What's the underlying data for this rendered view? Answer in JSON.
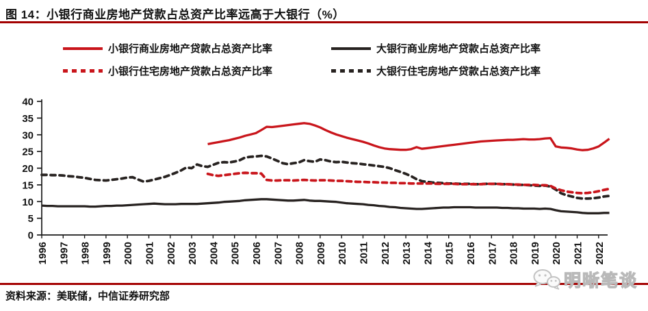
{
  "figure": {
    "title": "图 14：小银行商业房地产贷款占总资产比率远高于大银行（%）",
    "source": "资料来源：美联储，中信证券研究部",
    "watermark_text": "明晰笔谈"
  },
  "colors": {
    "accent_red": "#C9151B",
    "series_black": "#272220",
    "rule_red": "#A30000",
    "axis": "#1A1A1A",
    "watermark_gray": "#C6C6C6"
  },
  "chart_data": {
    "type": "line",
    "title": "小银行商业房地产贷款占总资产比率远高于大银行（%）",
    "xlabel": "",
    "ylabel": "",
    "unit": "%",
    "grid": false,
    "legend_position": "top",
    "ylim": [
      0,
      40
    ],
    "y_ticks": [
      0,
      5,
      10,
      15,
      20,
      25,
      30,
      35,
      40
    ],
    "x_domain": [
      1996,
      2022.5
    ],
    "x_step": 0.25,
    "x_tick_labels": [
      "1996",
      "1997",
      "1998",
      "1999",
      "2000",
      "2001",
      "2002",
      "2003",
      "2004",
      "2005",
      "2006",
      "2007",
      "2008",
      "2009",
      "2010",
      "2011",
      "2012",
      "2013",
      "2014",
      "2015",
      "2016",
      "2017",
      "2018",
      "2019",
      "2020",
      "2021",
      "2022"
    ],
    "series": [
      {
        "name": "小银行商业房地产贷款占总资产比率",
        "color": "#C9151B",
        "style": "solid",
        "x_start": 2003.75,
        "values": [
          27.2,
          27.5,
          27.8,
          28.1,
          28.4,
          28.8,
          29.2,
          29.7,
          30.1,
          30.5,
          31.4,
          32.4,
          32.3,
          32.5,
          32.7,
          32.9,
          33.1,
          33.3,
          33.5,
          33.3,
          32.8,
          32.2,
          31.4,
          30.7,
          30.1,
          29.6,
          29.1,
          28.7,
          28.3,
          27.9,
          27.4,
          26.8,
          26.3,
          25.9,
          25.7,
          25.6,
          25.5,
          25.5,
          25.7,
          26.3,
          25.8,
          26.0,
          26.2,
          26.4,
          26.6,
          26.8,
          27.0,
          27.2,
          27.4,
          27.6,
          27.8,
          28.0,
          28.1,
          28.2,
          28.3,
          28.4,
          28.5,
          28.5,
          28.6,
          28.7,
          28.6,
          28.6,
          28.7,
          28.9,
          29.0,
          26.5,
          26.2,
          26.1,
          25.9,
          25.6,
          25.4,
          25.5,
          25.9,
          26.5,
          27.6,
          28.8
        ]
      },
      {
        "name": "大银行商业房地产贷款占总资产比率",
        "color": "#272220",
        "style": "solid",
        "x_start": 1996.0,
        "values": [
          8.8,
          8.7,
          8.7,
          8.6,
          8.6,
          8.6,
          8.6,
          8.6,
          8.6,
          8.5,
          8.5,
          8.6,
          8.7,
          8.7,
          8.8,
          8.8,
          8.9,
          9.0,
          9.1,
          9.2,
          9.3,
          9.4,
          9.3,
          9.2,
          9.2,
          9.2,
          9.3,
          9.3,
          9.3,
          9.3,
          9.4,
          9.5,
          9.6,
          9.7,
          9.9,
          10.0,
          10.1,
          10.2,
          10.4,
          10.5,
          10.6,
          10.7,
          10.7,
          10.6,
          10.5,
          10.4,
          10.3,
          10.3,
          10.4,
          10.5,
          10.3,
          10.2,
          10.2,
          10.1,
          10.0,
          9.9,
          9.7,
          9.5,
          9.4,
          9.3,
          9.2,
          9.0,
          8.9,
          8.7,
          8.6,
          8.4,
          8.3,
          8.1,
          8.0,
          7.9,
          7.8,
          7.8,
          7.9,
          8.0,
          8.1,
          8.2,
          8.2,
          8.3,
          8.3,
          8.3,
          8.3,
          8.2,
          8.2,
          8.2,
          8.2,
          8.2,
          8.1,
          8.1,
          8.0,
          8.0,
          7.9,
          7.9,
          7.9,
          7.8,
          7.9,
          7.8,
          7.4,
          7.1,
          7.0,
          6.9,
          6.8,
          6.6,
          6.5,
          6.5,
          6.5,
          6.6,
          6.6
        ]
      },
      {
        "name": "小银行住宅房地产贷款占总资产比率",
        "color": "#C9151B",
        "style": "dashed",
        "x_start": 2003.75,
        "values": [
          18.3,
          17.9,
          17.7,
          17.9,
          18.1,
          18.3,
          18.5,
          18.6,
          18.5,
          18.5,
          18.4,
          16.5,
          16.3,
          16.3,
          16.4,
          16.4,
          16.3,
          16.4,
          16.5,
          16.4,
          16.3,
          16.4,
          16.4,
          16.3,
          16.2,
          16.2,
          16.1,
          16.0,
          15.9,
          15.9,
          15.8,
          15.8,
          15.7,
          15.7,
          15.6,
          15.6,
          15.5,
          15.5,
          15.4,
          15.4,
          15.4,
          15.4,
          15.4,
          15.3,
          15.3,
          15.3,
          15.3,
          15.2,
          15.2,
          15.2,
          15.2,
          15.2,
          15.3,
          15.3,
          15.3,
          15.2,
          15.2,
          15.1,
          15.1,
          15.0,
          15.0,
          15.0,
          14.9,
          14.9,
          14.7,
          13.9,
          13.4,
          13.0,
          12.8,
          12.6,
          12.5,
          12.6,
          12.8,
          13.1,
          13.5,
          13.8
        ]
      },
      {
        "name": "大银行住宅房地产贷款占总资产比率",
        "color": "#272220",
        "style": "dashed",
        "x_start": 1996.0,
        "values": [
          18.0,
          18.0,
          17.9,
          17.9,
          17.8,
          17.6,
          17.5,
          17.3,
          17.1,
          16.8,
          16.5,
          16.4,
          16.3,
          16.5,
          16.7,
          16.9,
          17.2,
          17.3,
          16.6,
          16.0,
          16.2,
          16.6,
          17.0,
          17.4,
          18.0,
          18.6,
          19.3,
          20.2,
          20.0,
          21.1,
          20.6,
          20.4,
          21.0,
          21.6,
          21.8,
          21.7,
          22.0,
          22.4,
          23.2,
          23.4,
          23.5,
          23.7,
          23.5,
          22.9,
          22.2,
          21.5,
          21.2,
          21.5,
          21.7,
          22.4,
          22.1,
          21.9,
          22.6,
          22.4,
          22.0,
          21.8,
          21.9,
          21.7,
          21.5,
          21.4,
          21.2,
          21.0,
          20.8,
          20.6,
          20.4,
          20.0,
          19.4,
          18.9,
          18.3,
          17.6,
          16.7,
          16.1,
          15.9,
          15.7,
          15.6,
          15.5,
          15.4,
          15.4,
          15.3,
          15.3,
          15.3,
          15.2,
          15.2,
          15.3,
          15.3,
          15.3,
          15.2,
          15.2,
          15.1,
          15.0,
          15.0,
          14.9,
          14.8,
          14.7,
          14.8,
          14.5,
          13.6,
          12.5,
          11.9,
          11.5,
          11.1,
          10.9,
          10.9,
          11.0,
          11.2,
          11.5,
          11.7
        ]
      }
    ]
  }
}
